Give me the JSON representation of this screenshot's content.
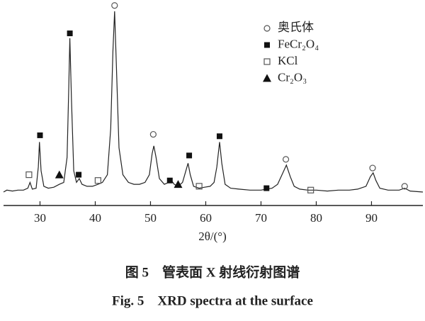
{
  "chart_data": {
    "type": "line",
    "x_label": "2θ/(°)",
    "caption": [
      "图 5　管表面 X 射线衍射图谱",
      "Fig. 5　XRD spectra at the surface"
    ],
    "xlim": [
      23.4,
      99.3
    ],
    "xticks": [
      30,
      40,
      50,
      60,
      70,
      80,
      90
    ],
    "ylim": [
      0,
      105
    ],
    "color": "#222222",
    "x": [
      23.4,
      24,
      25,
      26,
      27,
      27.8,
      28.2,
      28.6,
      29.3,
      29.7,
      29.9,
      30.2,
      30.7,
      31.5,
      32.5,
      33.5,
      34.3,
      34.9,
      35.2,
      35.4,
      35.7,
      36.1,
      36.6,
      37.1,
      37.6,
      38.5,
      39.5,
      40.5,
      41.3,
      42.2,
      42.8,
      43.2,
      43.5,
      43.8,
      44.3,
      45,
      46,
      47,
      48,
      49,
      49.8,
      50.3,
      50.6,
      51,
      51.6,
      52.5,
      53.3,
      53.8,
      54.3,
      55,
      55.8,
      56.4,
      56.8,
      57.2,
      57.8,
      58.8,
      59.8,
      60.8,
      61.5,
      62,
      62.5,
      62.9,
      63.5,
      64.5,
      66,
      68,
      70,
      71,
      72,
      73,
      73.8,
      74.6,
      75.3,
      76,
      77,
      78.5,
      80,
      82,
      84,
      86,
      87.5,
      89,
      89.8,
      90.3,
      90.8,
      91.5,
      93,
      95,
      96,
      97,
      99.3
    ],
    "values": [
      7,
      8,
      7.5,
      8,
      8,
      9,
      12,
      8.5,
      9,
      20,
      33,
      18,
      10,
      9,
      9.5,
      11,
      12,
      25,
      60,
      87,
      55,
      18,
      12,
      14,
      11,
      10,
      10,
      11,
      12,
      16,
      40,
      80,
      101,
      75,
      30,
      16,
      12,
      11,
      11,
      12,
      16,
      27,
      31,
      25,
      14,
      11,
      12,
      13,
      11,
      10,
      12,
      18,
      22,
      16,
      10,
      9,
      9.5,
      10,
      12,
      20,
      33,
      22,
      11,
      9,
      8.5,
      8,
      8,
      8.5,
      9,
      11,
      16,
      21,
      15,
      10,
      8.5,
      8,
      8,
      7.5,
      8,
      8,
      8.5,
      10,
      15,
      17,
      13,
      9,
      8,
      8,
      9,
      7.5,
      7
    ],
    "markers": [
      {
        "x": 43.5,
        "y": 104,
        "symbol": "circle"
      },
      {
        "x": 35.4,
        "y": 89.5,
        "symbol": "square"
      },
      {
        "x": 30,
        "y": 36.5,
        "symbol": "square"
      },
      {
        "x": 33.5,
        "y": 16,
        "symbol": "triangle"
      },
      {
        "x": 37,
        "y": 16,
        "symbol": "square"
      },
      {
        "x": 28,
        "y": 16,
        "symbol": "open-square"
      },
      {
        "x": 40.5,
        "y": 13,
        "symbol": "open-square"
      },
      {
        "x": 50.5,
        "y": 37,
        "symbol": "circle"
      },
      {
        "x": 53.5,
        "y": 13,
        "symbol": "square"
      },
      {
        "x": 55,
        "y": 11,
        "symbol": "triangle"
      },
      {
        "x": 57,
        "y": 26,
        "symbol": "square"
      },
      {
        "x": 58.8,
        "y": 10,
        "symbol": "open-square"
      },
      {
        "x": 62.5,
        "y": 36,
        "symbol": "square"
      },
      {
        "x": 71,
        "y": 9,
        "symbol": "square"
      },
      {
        "x": 74.5,
        "y": 24,
        "symbol": "circle"
      },
      {
        "x": 79,
        "y": 8,
        "symbol": "open-square"
      },
      {
        "x": 90.2,
        "y": 19.5,
        "symbol": "circle"
      },
      {
        "x": 96,
        "y": 10,
        "symbol": "circle"
      }
    ],
    "legend": [
      {
        "label": "奥氏体",
        "symbol": "circle"
      },
      {
        "label": "FeCr₂O₄",
        "symbol": "square"
      },
      {
        "label": "KCl",
        "symbol": "open-square"
      },
      {
        "label": "Cr₂O₃",
        "symbol": "triangle"
      }
    ]
  }
}
